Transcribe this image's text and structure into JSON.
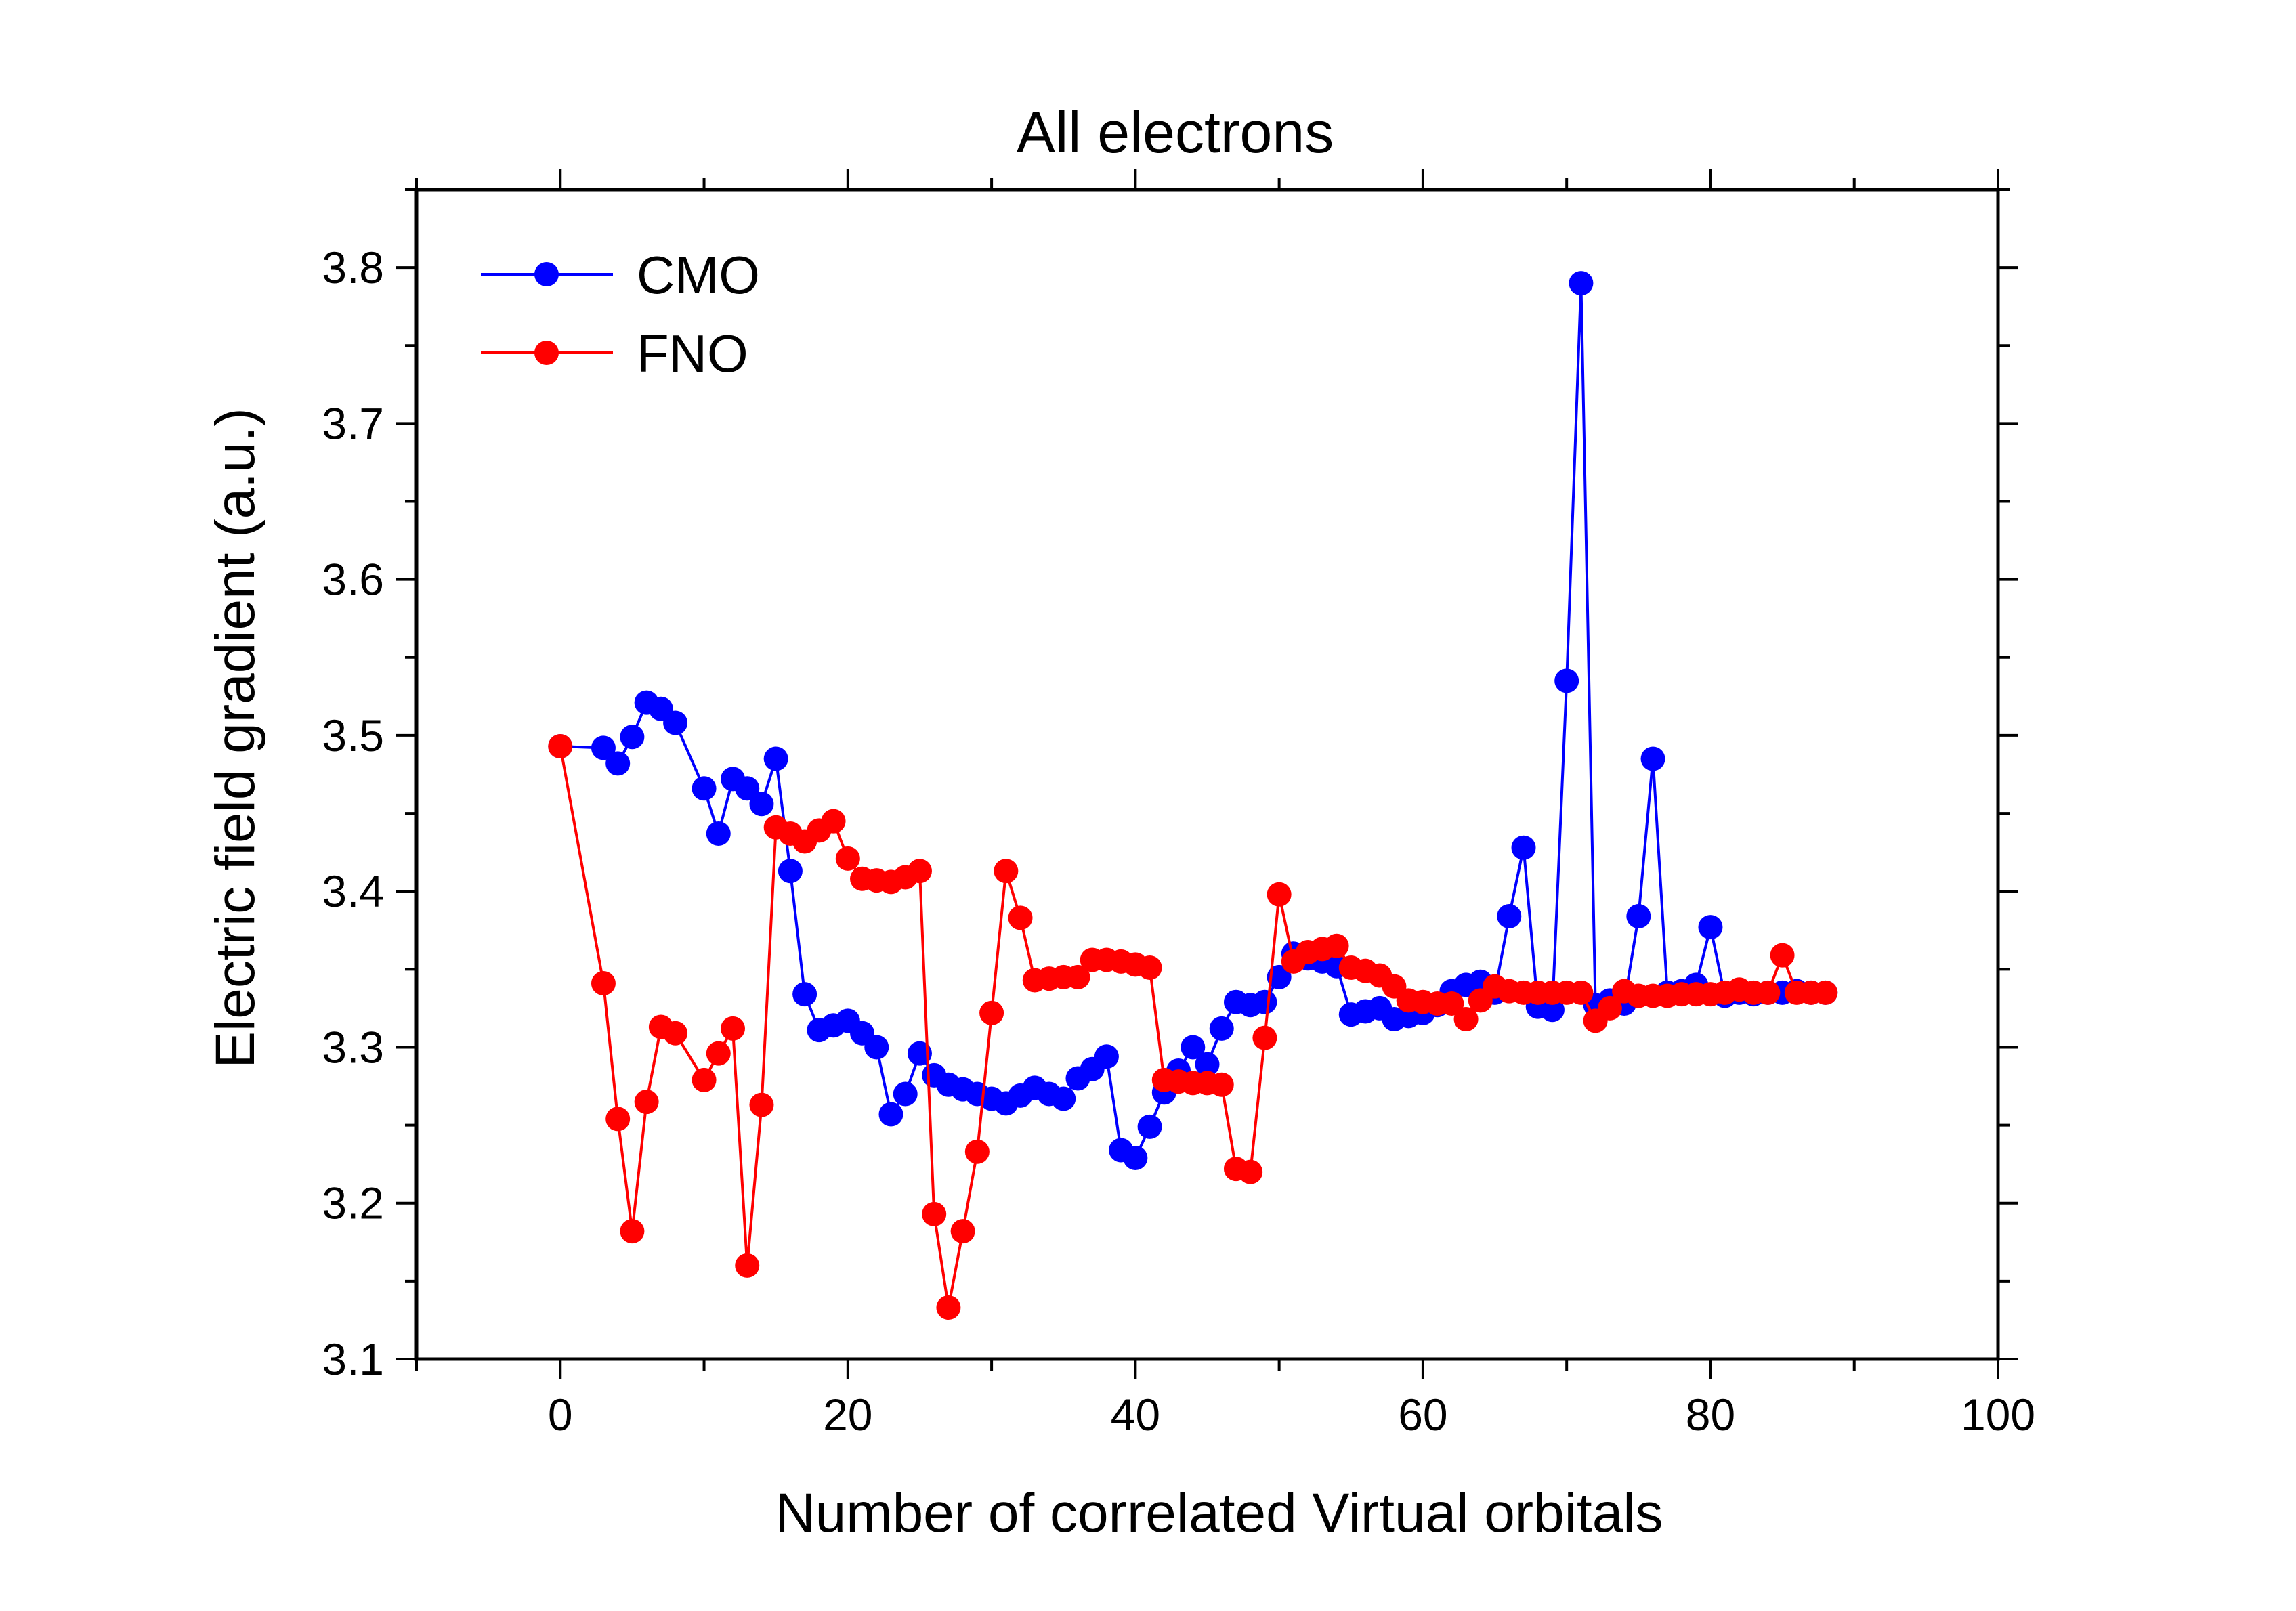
{
  "chart_data": {
    "type": "line",
    "title": "All electrons",
    "xlabel": "Number of correlated Virtual orbitals",
    "ylabel": "Electric field gradient (a.u.)",
    "xlim": [
      -10,
      100
    ],
    "ylim": [
      3.1,
      3.85
    ],
    "xticks": [
      0,
      20,
      40,
      60,
      80,
      100
    ],
    "yticks": [
      3.1,
      3.2,
      3.3,
      3.4,
      3.5,
      3.6,
      3.7,
      3.8
    ],
    "xtick_labels": [
      "0",
      "20",
      "40",
      "60",
      "80",
      "100"
    ],
    "ytick_labels": [
      "3.1",
      "3.2",
      "3.3",
      "3.4",
      "3.5",
      "3.6",
      "3.7",
      "3.8"
    ],
    "legend_position": "top-left",
    "grid": false,
    "series": [
      {
        "name": "CMO",
        "color": "#0000ff",
        "x": [
          0,
          3,
          4,
          5,
          6,
          7,
          8,
          10,
          11,
          12,
          13,
          14,
          15,
          16,
          17,
          18,
          19,
          20,
          21,
          22,
          23,
          24,
          25,
          26,
          27,
          28,
          29,
          30,
          31,
          32,
          33,
          34,
          35,
          36,
          37,
          38,
          39,
          40,
          41,
          42,
          43,
          44,
          45,
          46,
          47,
          48,
          49,
          50,
          51,
          52,
          53,
          54,
          55,
          56,
          57,
          58,
          59,
          60,
          61,
          62,
          63,
          64,
          65,
          66,
          67,
          68,
          69,
          70,
          71,
          72,
          73,
          74,
          75,
          76,
          77,
          78,
          79,
          80,
          81,
          82,
          83,
          84,
          85,
          86,
          87,
          88
        ],
        "y": [
          3.493,
          3.492,
          3.482,
          3.499,
          3.521,
          3.517,
          3.508,
          3.466,
          3.437,
          3.472,
          3.466,
          3.456,
          3.485,
          3.413,
          3.334,
          3.311,
          3.314,
          3.317,
          3.309,
          3.3,
          3.257,
          3.27,
          3.296,
          3.282,
          3.276,
          3.273,
          3.27,
          3.267,
          3.264,
          3.269,
          3.274,
          3.27,
          3.267,
          3.28,
          3.286,
          3.294,
          3.234,
          3.229,
          3.249,
          3.271,
          3.285,
          3.3,
          3.289,
          3.312,
          3.329,
          3.327,
          3.329,
          3.345,
          3.36,
          3.357,
          3.355,
          3.352,
          3.321,
          3.323,
          3.325,
          3.318,
          3.32,
          3.322,
          3.327,
          3.336,
          3.34,
          3.342,
          3.335,
          3.384,
          3.428,
          3.326,
          3.324,
          3.535,
          3.79,
          3.327,
          3.33,
          3.328,
          3.384,
          3.485,
          3.335,
          3.336,
          3.34,
          3.377,
          3.333,
          3.335,
          3.334,
          3.335,
          3.335,
          3.336,
          3.335,
          3.335
        ]
      },
      {
        "name": "FNO",
        "color": "#ff0000",
        "x": [
          0,
          3,
          4,
          5,
          6,
          7,
          8,
          10,
          11,
          12,
          13,
          14,
          15,
          16,
          17,
          18,
          19,
          20,
          21,
          22,
          23,
          24,
          25,
          26,
          27,
          28,
          29,
          30,
          31,
          32,
          33,
          34,
          35,
          36,
          37,
          38,
          39,
          40,
          41,
          42,
          43,
          44,
          45,
          46,
          47,
          48,
          49,
          50,
          51,
          52,
          53,
          54,
          55,
          56,
          57,
          58,
          59,
          60,
          61,
          62,
          63,
          64,
          65,
          66,
          67,
          68,
          69,
          70,
          71,
          72,
          73,
          74,
          75,
          76,
          77,
          78,
          79,
          80,
          81,
          82,
          83,
          84,
          85,
          86,
          87,
          88
        ],
        "y": [
          3.493,
          3.341,
          3.254,
          3.182,
          3.265,
          3.313,
          3.309,
          3.279,
          3.296,
          3.312,
          3.16,
          3.263,
          3.441,
          3.437,
          3.432,
          3.439,
          3.445,
          3.421,
          3.408,
          3.407,
          3.406,
          3.409,
          3.413,
          3.193,
          3.133,
          3.182,
          3.233,
          3.322,
          3.413,
          3.383,
          3.343,
          3.344,
          3.345,
          3.345,
          3.356,
          3.356,
          3.355,
          3.353,
          3.351,
          3.279,
          3.278,
          3.277,
          3.277,
          3.276,
          3.222,
          3.22,
          3.306,
          3.398,
          3.355,
          3.361,
          3.363,
          3.365,
          3.351,
          3.349,
          3.346,
          3.339,
          3.33,
          3.329,
          3.328,
          3.328,
          3.318,
          3.33,
          3.339,
          3.336,
          3.335,
          3.335,
          3.335,
          3.335,
          3.335,
          3.317,
          3.325,
          3.336,
          3.333,
          3.333,
          3.333,
          3.334,
          3.334,
          3.334,
          3.335,
          3.337,
          3.335,
          3.335,
          3.359,
          3.335,
          3.335,
          3.335
        ]
      }
    ]
  }
}
